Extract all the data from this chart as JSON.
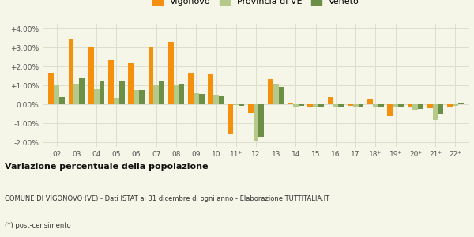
{
  "categories": [
    "02",
    "03",
    "04",
    "05",
    "06",
    "07",
    "08",
    "09",
    "10",
    "11*",
    "12",
    "13",
    "14",
    "15",
    "16",
    "17",
    "18*",
    "19*",
    "20*",
    "21*",
    "22*"
  ],
  "vigonovo": [
    1.65,
    3.45,
    3.05,
    2.35,
    2.15,
    3.02,
    3.3,
    1.65,
    1.6,
    -1.55,
    -0.45,
    1.35,
    0.1,
    -0.12,
    0.38,
    -0.08,
    0.28,
    -0.62,
    -0.15,
    -0.22,
    -0.18
  ],
  "provincia_ve": [
    1.02,
    1.1,
    0.8,
    0.32,
    0.75,
    1.0,
    1.05,
    0.6,
    0.48,
    -0.05,
    -1.9,
    1.1,
    -0.15,
    -0.18,
    -0.16,
    -0.12,
    -0.12,
    -0.16,
    -0.28,
    -0.85,
    -0.08
  ],
  "veneto": [
    0.38,
    1.38,
    1.22,
    1.2,
    0.73,
    1.23,
    1.08,
    0.56,
    0.43,
    -0.08,
    -1.7,
    0.93,
    -0.08,
    -0.16,
    -0.18,
    -0.13,
    -0.14,
    -0.18,
    -0.23,
    -0.52,
    0.06
  ],
  "color_vigonovo": "#f5900e",
  "color_provincia": "#b5c98a",
  "color_veneto": "#6b8f47",
  "title1": "Variazione percentuale della popolazione",
  "title2": "COMUNE DI VIGONOVO (VE) - Dati ISTAT al 31 dicembre di ogni anno - Elaborazione TUTTITALIA.IT",
  "title3": "(*) post-censimento",
  "ylim": [
    -2.25,
    4.25
  ],
  "yticks": [
    -2.0,
    -1.0,
    0.0,
    1.0,
    2.0,
    3.0,
    4.0
  ],
  "ytick_labels": [
    "-2.00%",
    "-1.00%",
    "0.00%",
    "+1.00%",
    "+2.00%",
    "+3.00%",
    "+4.00%"
  ],
  "background_color": "#f5f5e8",
  "grid_color": "#dedece"
}
